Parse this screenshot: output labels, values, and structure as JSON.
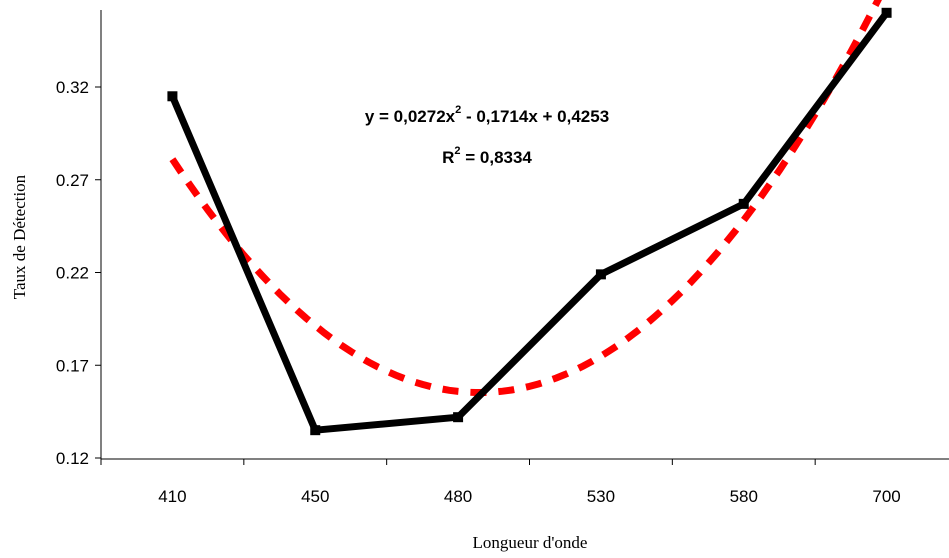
{
  "chart_data": {
    "type": "line",
    "categories": [
      "410",
      "450",
      "480",
      "530",
      "580",
      "700"
    ],
    "xlabel": "Longueur d'onde",
    "ylabel": "Taux de Détection",
    "ylim": [
      0.12,
      0.36
    ],
    "yticks": [
      "0.12",
      "0.17",
      "0.22",
      "0.27",
      "0.32"
    ],
    "ytick_values": [
      0.12,
      0.17,
      0.22,
      0.27,
      0.32
    ],
    "grid": false,
    "series": [
      {
        "values": [
          0.315,
          0.135,
          0.142,
          0.219,
          0.257,
          0.36
        ],
        "color": "#000000",
        "style": "solid"
      }
    ],
    "trendline": {
      "kind": "polynomial-2",
      "coefficients": [
        0.0272,
        -0.1714,
        0.4253
      ],
      "color": "#ff0000",
      "style": "dashed",
      "equation_prefix": "y = 0,0272x",
      "equation_exp": "2",
      "equation_suffix": " - 0,1714x + 0,4253",
      "r2_prefix": "R",
      "r2_exp": "2",
      "r2_suffix": " = 0,8334"
    }
  }
}
